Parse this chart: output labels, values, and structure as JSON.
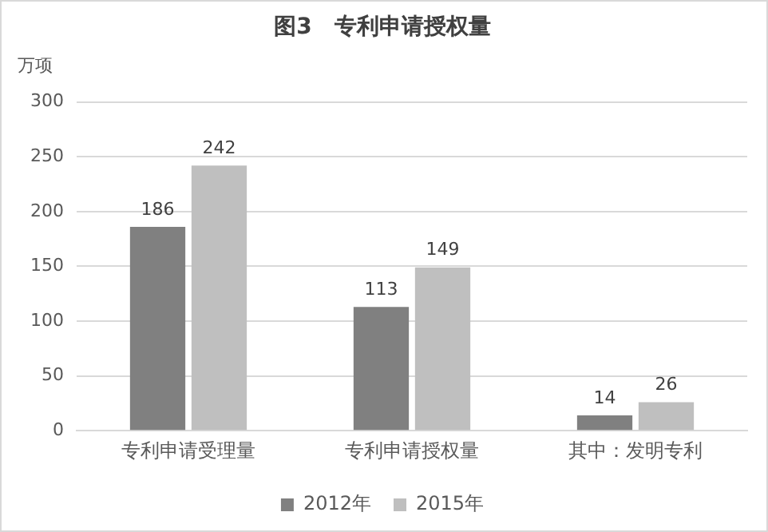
{
  "chart_data": {
    "type": "bar",
    "title": "图3　专利申请授权量",
    "ylabel": "万项",
    "categories": [
      "专利申请受理量",
      "专利申请授权量",
      "其中：发明专利"
    ],
    "series": [
      {
        "name": "2012年",
        "color": "#808080",
        "values": [
          186,
          113,
          14
        ]
      },
      {
        "name": "2015年",
        "color": "#bfbfbf",
        "values": [
          242,
          149,
          26
        ]
      }
    ],
    "ylim": [
      0,
      300
    ],
    "yticks": [
      0,
      50,
      100,
      150,
      200,
      250,
      300
    ],
    "grid": "y",
    "legend": "bottom",
    "data_labels": true
  }
}
